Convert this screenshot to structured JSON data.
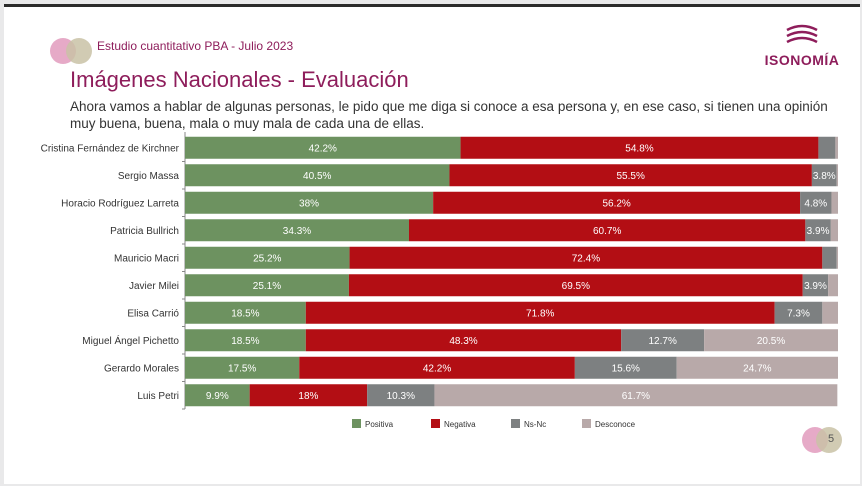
{
  "header": {
    "study": "Estudio cuantitativo PBA - Julio 2023",
    "logo": "ISONOMÍA",
    "title": "Imágenes Nacionales - Evaluación",
    "subtitle": "Ahora vamos a hablar de algunas personas, le pido que me diga si conoce a esa persona y, en ese caso, si tienen una opinión muy buena, buena, mala o muy mala de cada una de ellas."
  },
  "page_number": "5",
  "chart_data": {
    "type": "bar",
    "orientation": "horizontal",
    "stacked": true,
    "xlim": [
      0,
      100
    ],
    "legend_position": "bottom",
    "grid": false,
    "categories": [
      "Cristina Fernández de Kirchner",
      "Sergio Massa",
      "Horacio Rodríguez Larreta",
      "Patricia Bullrich",
      "Mauricio Macri",
      "Javier Milei",
      "Elisa Carrió",
      "Miguel Ángel Pichetto",
      "Gerardo Morales",
      "Luis Petri"
    ],
    "series": [
      {
        "name": "Positiva",
        "color": "#6d9260",
        "values": [
          42.2,
          40.5,
          38,
          34.3,
          25.2,
          25.1,
          18.5,
          18.5,
          17.5,
          9.9
        ],
        "labels": [
          "42.2%",
          "40.5%",
          "38%",
          "34.3%",
          "25.2%",
          "25.1%",
          "18.5%",
          "18.5%",
          "17.5%",
          "9.9%"
        ]
      },
      {
        "name": "Negativa",
        "color": "#b30e14",
        "values": [
          54.8,
          55.5,
          56.2,
          60.7,
          72.4,
          69.5,
          71.8,
          48.3,
          42.2,
          18
        ],
        "labels": [
          "54.8%",
          "55.5%",
          "56.2%",
          "60.7%",
          "72.4%",
          "69.5%",
          "71.8%",
          "48.3%",
          "42.2%",
          "18%"
        ]
      },
      {
        "name": "Ns-Nc",
        "color": "#7d8081",
        "values": [
          2.6,
          3.8,
          4.8,
          3.9,
          2.2,
          3.9,
          7.3,
          12.7,
          15.6,
          10.3
        ],
        "labels": [
          "",
          "3.8%",
          "4.8%",
          "3.9%",
          "",
          "3.9%",
          "7.3%",
          "12.7%",
          "15.6%",
          "10.3%"
        ]
      },
      {
        "name": "Desconoce",
        "color": "#b8a9a9",
        "values": [
          0.4,
          0.2,
          1,
          1.1,
          0.2,
          1.5,
          2.4,
          20.5,
          24.7,
          61.7
        ],
        "labels": [
          "",
          "",
          "",
          "",
          "",
          "",
          "",
          "20.5%",
          "24.7%",
          "61.7%"
        ]
      }
    ]
  }
}
